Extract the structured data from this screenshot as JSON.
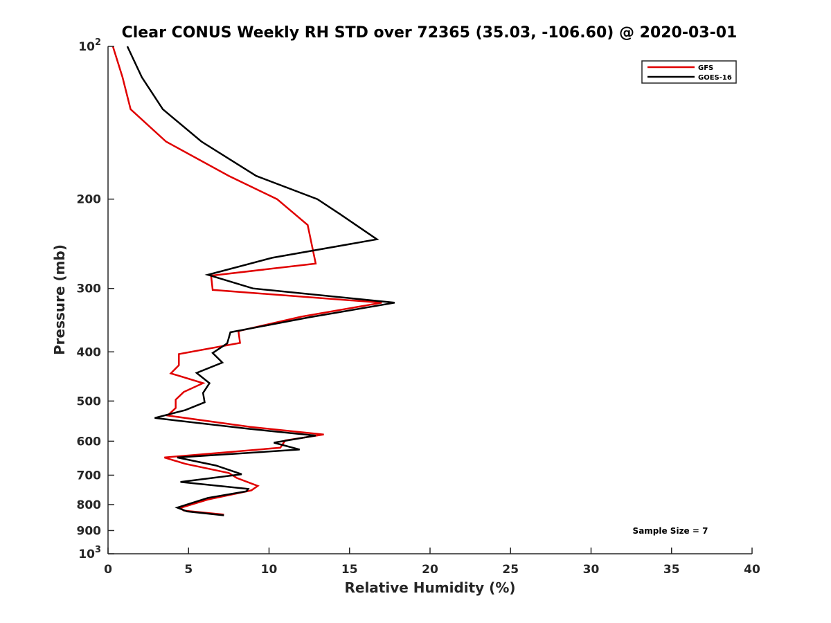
{
  "chart_data": {
    "type": "line",
    "title": "Clear CONUS Weekly RH STD over 72365 (35.03, -106.60) @ 2020-03-01",
    "xlabel": "Relative Humidity (%)",
    "ylabel": "Pressure (mb)",
    "xlim": [
      0,
      40
    ],
    "ylim": [
      100,
      1000
    ],
    "y_scale": "log",
    "y_reversed": true,
    "grid": false,
    "legend_position": "top-right",
    "x_ticks": [
      0,
      5,
      10,
      15,
      20,
      25,
      30,
      35,
      40
    ],
    "y_ticks": [
      {
        "value": 100,
        "base": "10",
        "exp": "2"
      },
      {
        "value": 200,
        "label": "200"
      },
      {
        "value": 300,
        "label": "300"
      },
      {
        "value": 400,
        "label": "400"
      },
      {
        "value": 500,
        "label": "500"
      },
      {
        "value": 600,
        "label": "600"
      },
      {
        "value": 700,
        "label": "700"
      },
      {
        "value": 800,
        "label": "800"
      },
      {
        "value": 900,
        "label": "900"
      },
      {
        "value": 1000,
        "base": "10",
        "exp": "3"
      }
    ],
    "series": [
      {
        "name": "GFS",
        "color": "#e00000",
        "points": [
          {
            "x": 0.3,
            "y": 100
          },
          {
            "x": 0.9,
            "y": 115
          },
          {
            "x": 1.4,
            "y": 133
          },
          {
            "x": 3.6,
            "y": 154
          },
          {
            "x": 7.5,
            "y": 180
          },
          {
            "x": 10.5,
            "y": 200
          },
          {
            "x": 12.4,
            "y": 225
          },
          {
            "x": 12.9,
            "y": 268
          },
          {
            "x": 6.4,
            "y": 283
          },
          {
            "x": 6.5,
            "y": 302
          },
          {
            "x": 17.0,
            "y": 320
          },
          {
            "x": 12.0,
            "y": 341
          },
          {
            "x": 8.1,
            "y": 364
          },
          {
            "x": 8.2,
            "y": 384
          },
          {
            "x": 4.4,
            "y": 404
          },
          {
            "x": 4.4,
            "y": 425
          },
          {
            "x": 3.9,
            "y": 441
          },
          {
            "x": 5.9,
            "y": 461
          },
          {
            "x": 4.7,
            "y": 480
          },
          {
            "x": 4.2,
            "y": 497
          },
          {
            "x": 4.2,
            "y": 516
          },
          {
            "x": 3.7,
            "y": 534
          },
          {
            "x": 8.8,
            "y": 562
          },
          {
            "x": 13.4,
            "y": 582
          },
          {
            "x": 11.0,
            "y": 598
          },
          {
            "x": 10.7,
            "y": 618
          },
          {
            "x": 3.5,
            "y": 646
          },
          {
            "x": 4.8,
            "y": 665
          },
          {
            "x": 7.5,
            "y": 693
          },
          {
            "x": 8.0,
            "y": 709
          },
          {
            "x": 9.3,
            "y": 735
          },
          {
            "x": 8.9,
            "y": 750
          },
          {
            "x": 6.2,
            "y": 782
          },
          {
            "x": 4.5,
            "y": 812
          },
          {
            "x": 4.7,
            "y": 822
          },
          {
            "x": 7.2,
            "y": 837
          }
        ]
      },
      {
        "name": "GOES-16",
        "color": "#000000",
        "points": [
          {
            "x": 1.2,
            "y": 100
          },
          {
            "x": 2.1,
            "y": 115
          },
          {
            "x": 3.4,
            "y": 133
          },
          {
            "x": 5.8,
            "y": 154
          },
          {
            "x": 9.2,
            "y": 180
          },
          {
            "x": 13.0,
            "y": 200
          },
          {
            "x": 14.4,
            "y": 214
          },
          {
            "x": 16.7,
            "y": 240
          },
          {
            "x": 10.2,
            "y": 261
          },
          {
            "x": 6.2,
            "y": 282
          },
          {
            "x": 9.0,
            "y": 300
          },
          {
            "x": 17.8,
            "y": 320
          },
          {
            "x": 12.5,
            "y": 342
          },
          {
            "x": 7.6,
            "y": 366
          },
          {
            "x": 7.4,
            "y": 385
          },
          {
            "x": 6.5,
            "y": 402
          },
          {
            "x": 7.1,
            "y": 420
          },
          {
            "x": 5.5,
            "y": 440
          },
          {
            "x": 6.3,
            "y": 461
          },
          {
            "x": 5.9,
            "y": 482
          },
          {
            "x": 6.0,
            "y": 503
          },
          {
            "x": 4.8,
            "y": 521
          },
          {
            "x": 2.9,
            "y": 540
          },
          {
            "x": 8.7,
            "y": 567
          },
          {
            "x": 12.9,
            "y": 585
          },
          {
            "x": 10.3,
            "y": 604
          },
          {
            "x": 11.9,
            "y": 623
          },
          {
            "x": 4.3,
            "y": 646
          },
          {
            "x": 6.7,
            "y": 670
          },
          {
            "x": 8.3,
            "y": 697
          },
          {
            "x": 4.5,
            "y": 722
          },
          {
            "x": 8.7,
            "y": 745
          },
          {
            "x": 8.6,
            "y": 753
          },
          {
            "x": 6.2,
            "y": 776
          },
          {
            "x": 4.3,
            "y": 811
          },
          {
            "x": 4.9,
            "y": 825
          },
          {
            "x": 7.2,
            "y": 840
          }
        ]
      }
    ],
    "annotation": "Sample Size = 7"
  }
}
